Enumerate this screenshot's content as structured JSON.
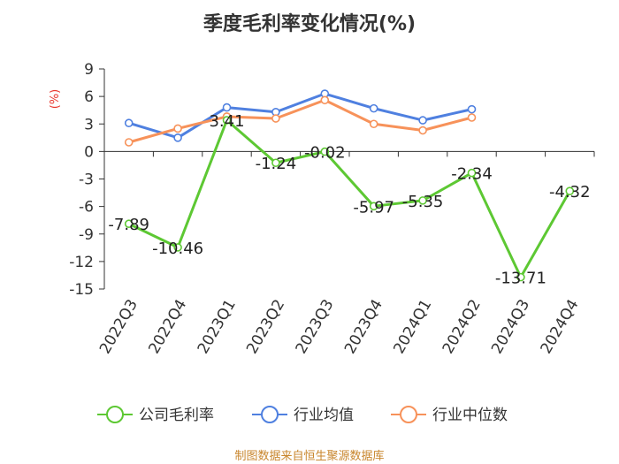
{
  "title": "季度毛利率变化情况(%)",
  "source": "制图数据来自恒生聚源数据库",
  "colors": {
    "company": "#5dc833",
    "industry_avg": "#4f80e0",
    "industry_median": "#f7925a",
    "ylabel": "#e8362d",
    "source": "#c8862d",
    "axis": "#333333"
  },
  "icons": {
    "legend_marker": "circle-line-icon"
  },
  "chart_data": {
    "type": "line",
    "title": "季度毛利率变化情况(%)",
    "xlabel": "",
    "ylabel": "(%)",
    "categories": [
      "2022Q3",
      "2022Q4",
      "2023Q1",
      "2023Q2",
      "2023Q3",
      "2023Q4",
      "2024Q1",
      "2024Q2",
      "2024Q3",
      "2024Q4"
    ],
    "ylim": [
      -15,
      9
    ],
    "yticks": [
      9,
      6,
      3,
      0,
      -3,
      -6,
      -9,
      -12,
      -15
    ],
    "ytick_labels": [
      "9",
      "6",
      "3",
      "0",
      "-3",
      "-6",
      "-9",
      "-12",
      "-15"
    ],
    "grid": false,
    "legend_position": "bottom",
    "series": [
      {
        "name": "公司毛利率",
        "key": "company",
        "values": [
          -7.89,
          -10.46,
          3.41,
          -1.24,
          -0.02,
          -5.97,
          -5.35,
          -2.34,
          -13.71,
          -4.32
        ],
        "labels": [
          "-7.89",
          "-10.46",
          "3.41",
          "-1.24",
          "-0.02",
          "-5.97",
          "-5.35",
          "-2.34",
          "-13.71",
          "-4.32"
        ]
      },
      {
        "name": "行业均值",
        "key": "industry_avg",
        "values": [
          3.1,
          1.5,
          4.8,
          4.3,
          6.3,
          4.7,
          3.4,
          4.6,
          null,
          null
        ]
      },
      {
        "name": "行业中位数",
        "key": "industry_median",
        "values": [
          1.0,
          2.5,
          3.8,
          3.6,
          5.6,
          3.0,
          2.3,
          3.7,
          null,
          null
        ]
      }
    ]
  }
}
